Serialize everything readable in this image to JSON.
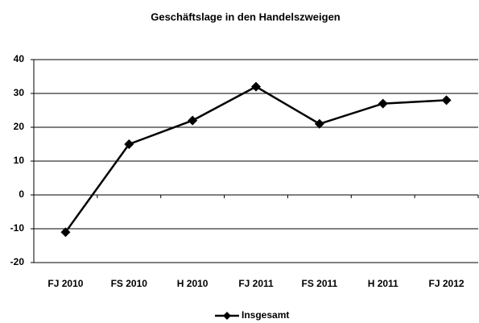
{
  "chart_data": {
    "type": "line",
    "title": "Geschäftslage in den Handelszweigen",
    "categories": [
      "FJ 2010",
      "FS 2010",
      "H 2010",
      "FJ 2011",
      "FS 2011",
      "H 2011",
      "FJ 2012"
    ],
    "series": [
      {
        "name": "Insgesamt",
        "color": "#000000",
        "values": [
          -11,
          15,
          22,
          32,
          21,
          27,
          28
        ]
      }
    ],
    "ylim": [
      -20,
      40
    ],
    "yticks": [
      -20,
      -10,
      0,
      10,
      20,
      30,
      40
    ],
    "grid": true,
    "legend": "bottom"
  }
}
